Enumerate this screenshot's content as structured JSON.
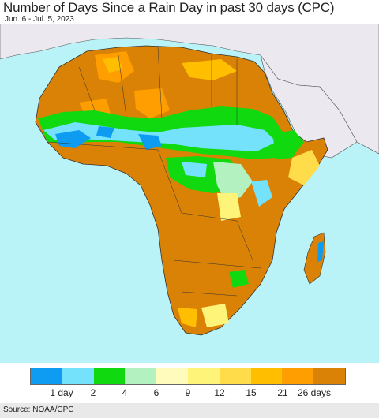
{
  "title": "Number of Days Since a Rain Day in past 30 days (CPC)",
  "date_range": "Jun. 6 - Jul. 5, 2023",
  "source": "Source: NOAA/CPC",
  "colors": {
    "ocean": "#b9f3f7",
    "non_africa_land": "#ece8ef",
    "border": "#333333"
  },
  "legend": {
    "colors": [
      "#0d9cf2",
      "#74e2fb",
      "#10d90f",
      "#b3f2c0",
      "#fffbbc",
      "#fff47a",
      "#ffdc4a",
      "#ffbf00",
      "#ff9e00",
      "#d98206"
    ],
    "labels": [
      "1 day",
      "2",
      "4",
      "6",
      "9",
      "12",
      "15",
      "21",
      "26 days"
    ]
  }
}
